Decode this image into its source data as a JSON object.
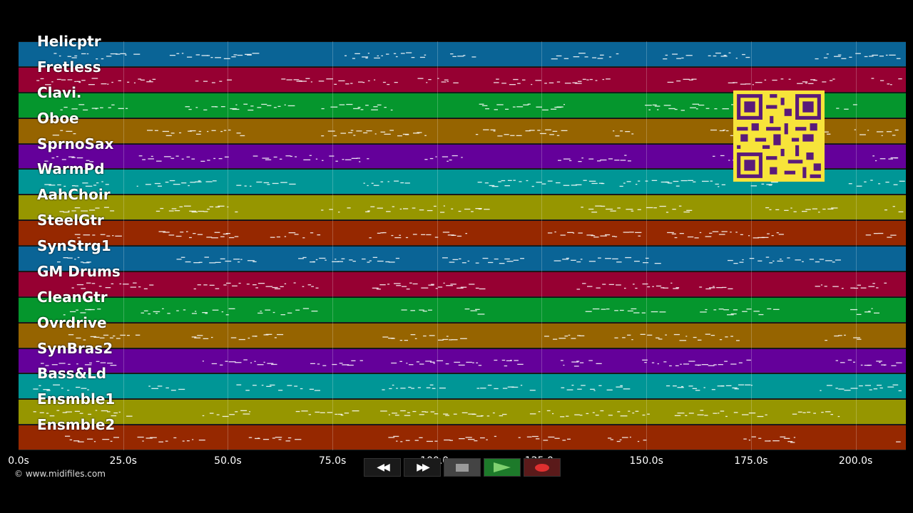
{
  "tracks": [
    {
      "name": "Helicptr",
      "color": "#0a6496"
    },
    {
      "name": "Fretless",
      "color": "#960032"
    },
    {
      "name": "Clavi.",
      "color": "#05962d"
    },
    {
      "name": "Oboe",
      "color": "#966400"
    },
    {
      "name": "SprnoSax",
      "color": "#64009a"
    },
    {
      "name": "WarmPd",
      "color": "#009696"
    },
    {
      "name": "AahChoir",
      "color": "#969600"
    },
    {
      "name": "SteelGtr",
      "color": "#962800"
    },
    {
      "name": "SynStrg1",
      "color": "#0a6496"
    },
    {
      "name": "GM Drums",
      "color": "#960032"
    },
    {
      "name": "CleanGtr",
      "color": "#05962d"
    },
    {
      "name": "Ovrdrive",
      "color": "#966400"
    },
    {
      "name": "SynBras2",
      "color": "#64009a"
    },
    {
      "name": "Bass&Ld",
      "color": "#009696"
    },
    {
      "name": "Ensmble1",
      "color": "#969600"
    },
    {
      "name": "Ensmble2",
      "color": "#962800"
    }
  ],
  "timeline": {
    "ticks": [
      "0.0s",
      "25.0s",
      "50.0s",
      "75.0s",
      "100.0s",
      "125.0s",
      "150.0s",
      "175.0s",
      "200.0s"
    ],
    "tick_values": [
      0,
      25,
      50,
      75,
      100,
      125,
      150,
      175,
      200
    ],
    "duration": 212
  },
  "copyright": "© www.midifiles.com",
  "controls": {
    "rewind": "rewind-icon",
    "fast_forward": "fast-forward-icon",
    "stop": "stop-icon",
    "play": "play-icon",
    "record": "record-icon"
  },
  "qr_color": "#f7e43a"
}
